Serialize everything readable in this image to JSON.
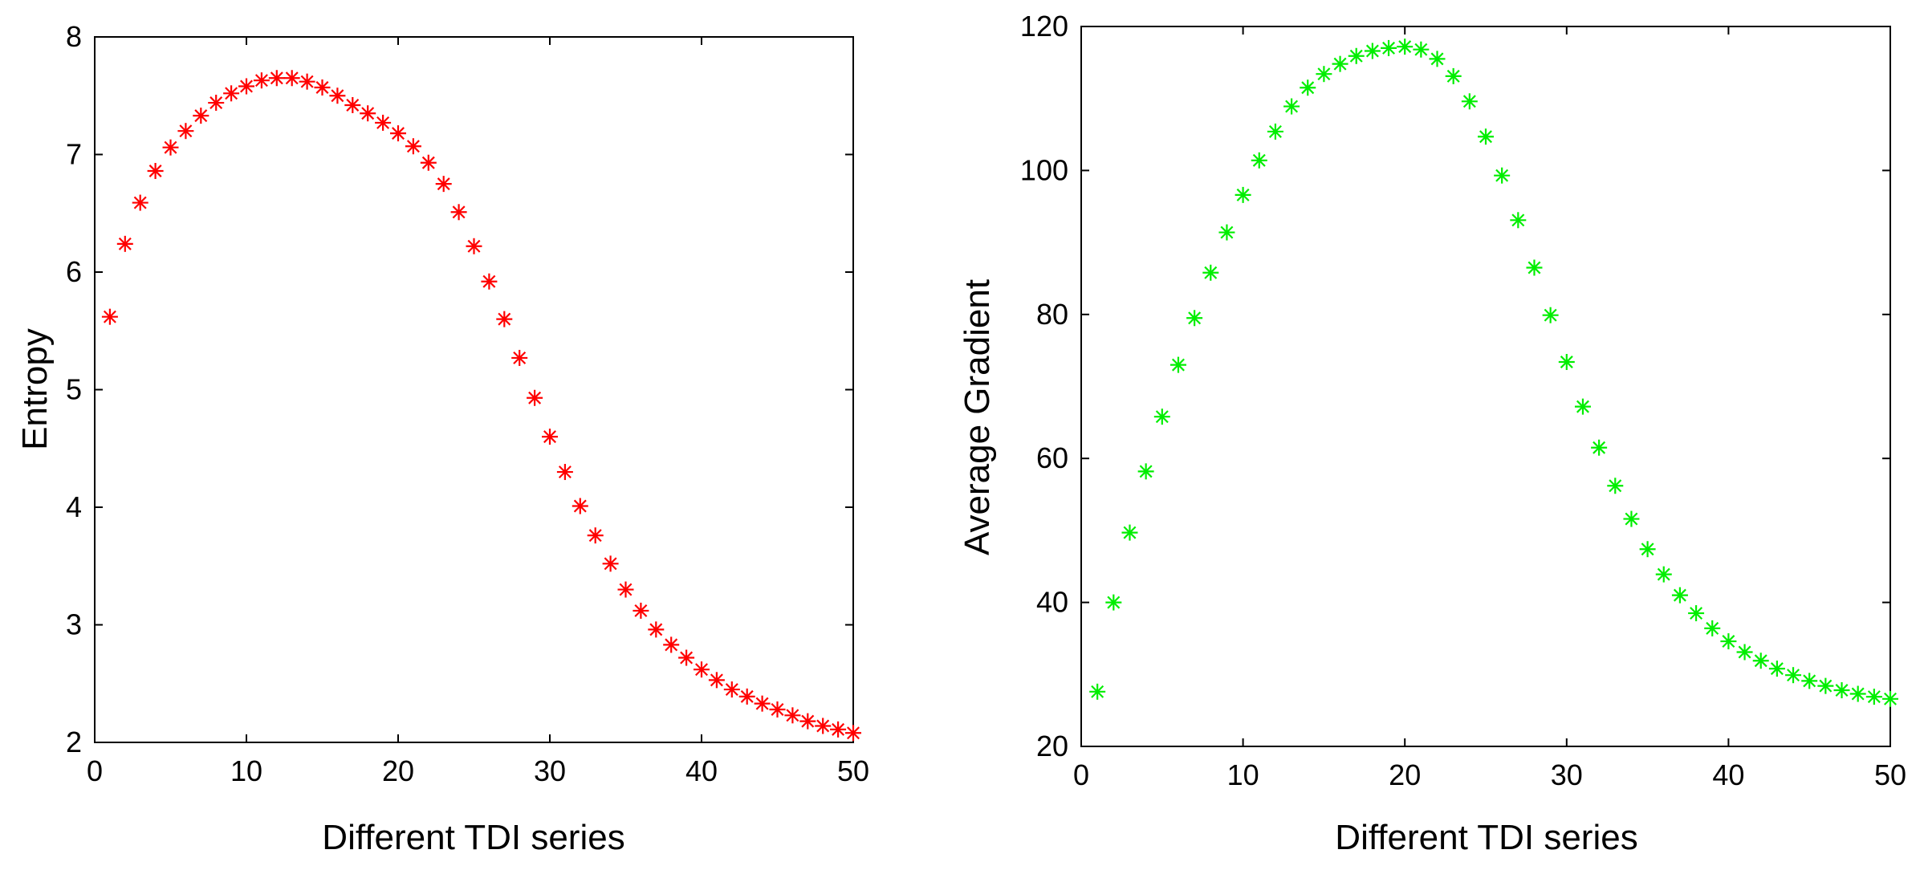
{
  "chart_data": [
    {
      "type": "scatter",
      "marker": "asterisk",
      "color": "#ff0000",
      "title": "",
      "xlabel": "Different TDI series",
      "ylabel": "Entropy",
      "xlim": [
        0,
        50
      ],
      "ylim": [
        2,
        8
      ],
      "xticks": [
        0,
        10,
        20,
        30,
        40,
        50
      ],
      "yticks": [
        2,
        3,
        4,
        5,
        6,
        7,
        8
      ],
      "grid": false,
      "series": [
        {
          "name": "Entropy",
          "x": [
            1,
            2,
            3,
            4,
            5,
            6,
            7,
            8,
            9,
            10,
            11,
            12,
            13,
            14,
            15,
            16,
            17,
            18,
            19,
            20,
            21,
            22,
            23,
            24,
            25,
            26,
            27,
            28,
            29,
            30,
            31,
            32,
            33,
            34,
            35,
            36,
            37,
            38,
            39,
            40,
            41,
            42,
            43,
            44,
            45,
            46,
            47,
            48,
            49,
            50
          ],
          "y": [
            5.62,
            6.24,
            6.59,
            6.86,
            7.06,
            7.2,
            7.33,
            7.44,
            7.52,
            7.58,
            7.63,
            7.65,
            7.65,
            7.62,
            7.57,
            7.5,
            7.42,
            7.35,
            7.27,
            7.18,
            7.07,
            6.93,
            6.75,
            6.51,
            6.22,
            5.92,
            5.6,
            5.27,
            4.93,
            4.6,
            4.3,
            4.01,
            3.76,
            3.52,
            3.3,
            3.12,
            2.96,
            2.83,
            2.72,
            2.62,
            2.53,
            2.45,
            2.39,
            2.33,
            2.28,
            2.23,
            2.18,
            2.14,
            2.11,
            2.08
          ]
        }
      ]
    },
    {
      "type": "scatter",
      "marker": "asterisk",
      "color": "#00ee00",
      "title": "",
      "xlabel": "Different TDI series",
      "ylabel": "Average Gradient",
      "xlim": [
        0,
        50
      ],
      "ylim": [
        20,
        120
      ],
      "xticks": [
        0,
        10,
        20,
        30,
        40,
        50
      ],
      "yticks": [
        20,
        40,
        60,
        80,
        100,
        120
      ],
      "grid": false,
      "series": [
        {
          "name": "Average Gradient",
          "x": [
            1,
            2,
            3,
            4,
            5,
            6,
            7,
            8,
            9,
            10,
            11,
            12,
            13,
            14,
            15,
            16,
            17,
            18,
            19,
            20,
            21,
            22,
            23,
            24,
            25,
            26,
            27,
            28,
            29,
            30,
            31,
            32,
            33,
            34,
            35,
            36,
            37,
            38,
            39,
            40,
            41,
            42,
            43,
            44,
            45,
            46,
            47,
            48,
            49,
            50
          ],
          "y": [
            27.6,
            40.0,
            49.7,
            58.2,
            65.8,
            73.0,
            79.5,
            85.8,
            91.4,
            96.6,
            101.4,
            105.4,
            108.9,
            111.5,
            113.4,
            114.8,
            115.9,
            116.6,
            117.0,
            117.2,
            116.8,
            115.5,
            113.1,
            109.6,
            104.7,
            99.3,
            93.1,
            86.5,
            79.9,
            73.4,
            67.2,
            61.5,
            56.2,
            51.6,
            47.4,
            43.9,
            41.0,
            38.5,
            36.4,
            34.6,
            33.1,
            31.9,
            30.8,
            29.9,
            29.1,
            28.4,
            27.8,
            27.3,
            26.9,
            26.6
          ]
        }
      ]
    }
  ]
}
